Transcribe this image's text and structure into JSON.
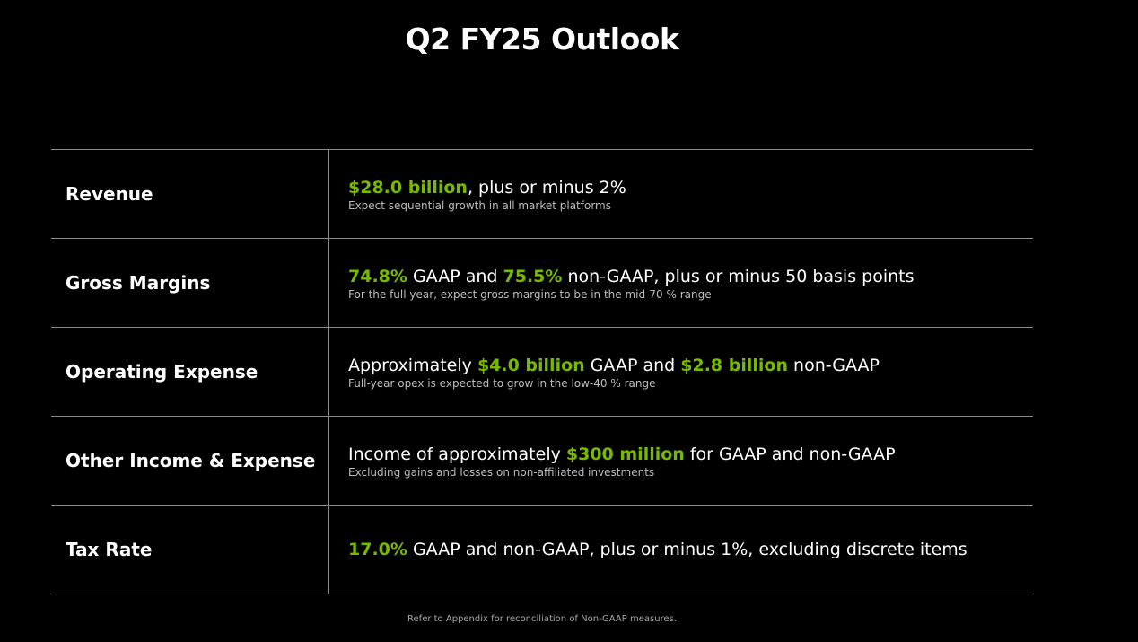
{
  "title": "Q2 FY25 Outlook",
  "accent_color": "#76b900",
  "rows": [
    {
      "label": "Revenue",
      "parts": [
        {
          "text": "$28.0 billion",
          "highlight": true
        },
        {
          "text": ", plus or minus 2%",
          "highlight": false
        }
      ],
      "note": "Expect sequential growth in all market platforms"
    },
    {
      "label": "Gross Margins",
      "parts": [
        {
          "text": "74.8%",
          "highlight": true
        },
        {
          "text": " GAAP and ",
          "highlight": false
        },
        {
          "text": "75.5%",
          "highlight": true
        },
        {
          "text": " non-GAAP, plus or minus 50 basis points",
          "highlight": false
        }
      ],
      "note": "For the full year, expect gross margins to be in the mid-70 % range"
    },
    {
      "label": "Operating Expense",
      "parts": [
        {
          "text": "Approximately ",
          "highlight": false
        },
        {
          "text": "$4.0 billion",
          "highlight": true
        },
        {
          "text": " GAAP and ",
          "highlight": false
        },
        {
          "text": "$2.8 billion",
          "highlight": true
        },
        {
          "text": " non-GAAP",
          "highlight": false
        }
      ],
      "note": "Full-year opex is expected to grow in the low-40 % range"
    },
    {
      "label": "Other Income & Expense",
      "parts": [
        {
          "text": "Income of approximately ",
          "highlight": false
        },
        {
          "text": "$300 million",
          "highlight": true
        },
        {
          "text": " for GAAP and non-GAAP",
          "highlight": false
        }
      ],
      "note": "Excluding gains and losses on non-affiliated investments"
    },
    {
      "label": "Tax Rate",
      "parts": [
        {
          "text": "17.0%",
          "highlight": true
        },
        {
          "text": " GAAP and non-GAAP, plus or minus 1%, excluding discrete items",
          "highlight": false
        }
      ],
      "note": ""
    }
  ],
  "footnote": "Refer to Appendix for reconciliation of Non-GAAP measures."
}
